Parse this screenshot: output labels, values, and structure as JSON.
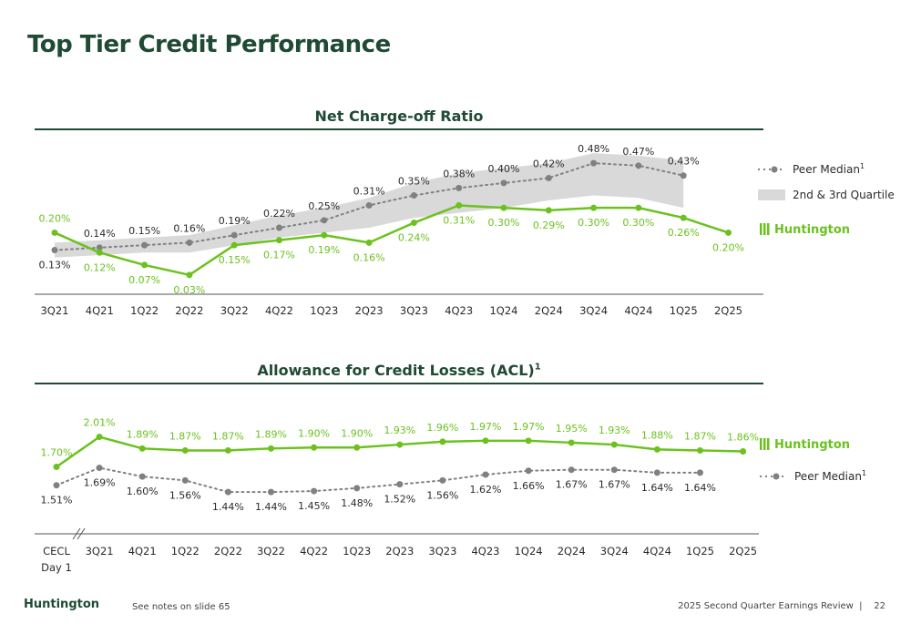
{
  "page": {
    "title": "Top Tier Credit Performance",
    "footer_note": "See notes on slide 65",
    "footer_review": "2025 Second Quarter Earnings Review",
    "page_number": "22",
    "brand": "Huntington"
  },
  "chart_data": [
    {
      "type": "line",
      "title": "Net Charge-off Ratio",
      "categories": [
        "3Q21",
        "4Q21",
        "1Q22",
        "2Q22",
        "3Q22",
        "4Q22",
        "1Q23",
        "2Q23",
        "3Q23",
        "4Q23",
        "1Q24",
        "2Q24",
        "3Q24",
        "4Q24",
        "1Q25",
        "2Q25"
      ],
      "series": [
        {
          "name": "Huntington",
          "color": "#6bc21e",
          "values": [
            0.2,
            0.12,
            0.07,
            0.03,
            0.15,
            0.17,
            0.19,
            0.16,
            0.24,
            0.31,
            0.3,
            0.29,
            0.3,
            0.3,
            0.26,
            0.2
          ],
          "labels": [
            "0.20%",
            "0.12%",
            "0.07%",
            "0.03%",
            "0.15%",
            "0.17%",
            "0.19%",
            "0.16%",
            "0.24%",
            "0.31%",
            "0.30%",
            "0.29%",
            "0.30%",
            "0.30%",
            "0.26%",
            "0.20%"
          ]
        },
        {
          "name": "Peer Median",
          "color": "#808080",
          "values": [
            0.13,
            0.14,
            0.15,
            0.16,
            0.19,
            0.22,
            0.25,
            0.31,
            0.35,
            0.38,
            0.4,
            0.42,
            0.48,
            0.47,
            0.43,
            null
          ],
          "labels": [
            "0.13%",
            "0.14%",
            "0.15%",
            "0.16%",
            "0.19%",
            "0.22%",
            "0.25%",
            "0.31%",
            "0.35%",
            "0.38%",
            "0.40%",
            "0.42%",
            "0.48%",
            "0.47%",
            "0.43%",
            ""
          ]
        }
      ],
      "quartile_band": {
        "name": "2nd & 3rd Quartile",
        "color": "#d9d9d9",
        "low": [
          0.1,
          0.11,
          0.12,
          0.12,
          0.15,
          0.18,
          0.2,
          0.22,
          0.26,
          0.28,
          0.3,
          0.33,
          0.35,
          0.34,
          0.3,
          null
        ],
        "high": [
          0.16,
          0.17,
          0.18,
          0.19,
          0.23,
          0.27,
          0.3,
          0.34,
          0.4,
          0.44,
          0.46,
          0.48,
          0.52,
          0.51,
          0.49,
          null
        ]
      },
      "legend": [
        {
          "label": "Peer Median",
          "sup": "1"
        },
        {
          "label": "2nd & 3rd Quartile"
        },
        {
          "label": "Huntington"
        }
      ],
      "ylim": [
        0,
        0.55
      ]
    },
    {
      "type": "line",
      "title": "Allowance for Credit Losses (ACL)",
      "title_sup": "1",
      "categories": [
        "CECL Day 1",
        "3Q21",
        "4Q21",
        "1Q22",
        "2Q22",
        "3Q22",
        "4Q22",
        "1Q23",
        "2Q23",
        "3Q23",
        "4Q23",
        "1Q24",
        "2Q24",
        "3Q24",
        "4Q24",
        "1Q25",
        "2Q25"
      ],
      "series": [
        {
          "name": "Huntington",
          "color": "#6bc21e",
          "values": [
            1.7,
            2.01,
            1.89,
            1.87,
            1.87,
            1.89,
            1.9,
            1.9,
            1.93,
            1.96,
            1.97,
            1.97,
            1.95,
            1.93,
            1.88,
            1.87,
            1.86
          ],
          "labels": [
            "1.70%",
            "2.01%",
            "1.89%",
            "1.87%",
            "1.87%",
            "1.89%",
            "1.90%",
            "1.90%",
            "1.93%",
            "1.96%",
            "1.97%",
            "1.97%",
            "1.95%",
            "1.93%",
            "1.88%",
            "1.87%",
            "1.86%"
          ]
        },
        {
          "name": "Peer Median",
          "color": "#808080",
          "values": [
            1.51,
            1.69,
            1.6,
            1.56,
            1.44,
            1.44,
            1.45,
            1.48,
            1.52,
            1.56,
            1.62,
            1.66,
            1.67,
            1.67,
            1.64,
            1.64,
            null
          ],
          "labels": [
            "1.51%",
            "1.69%",
            "1.60%",
            "1.56%",
            "1.44%",
            "1.44%",
            "1.45%",
            "1.48%",
            "1.52%",
            "1.56%",
            "1.62%",
            "1.66%",
            "1.67%",
            "1.67%",
            "1.64%",
            "1.64%",
            ""
          ]
        }
      ],
      "legend": [
        {
          "label": "Huntington"
        },
        {
          "label": "Peer Median",
          "sup": "1"
        }
      ],
      "ylim": [
        1.3,
        2.1
      ]
    }
  ]
}
